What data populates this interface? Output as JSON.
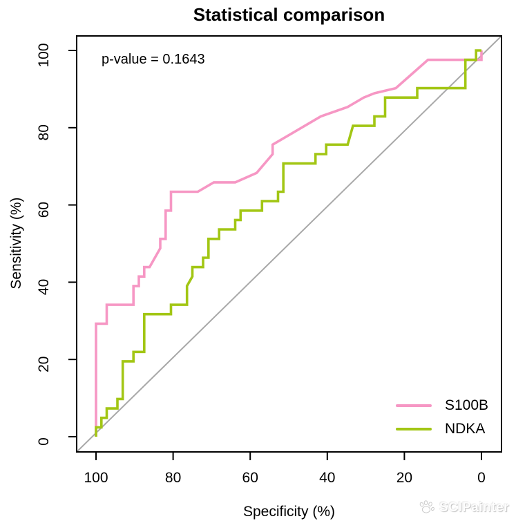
{
  "title": "Statistical comparison",
  "annotation": {
    "text": "p-value = 0.1643"
  },
  "watermark": {
    "label": "SCIPainter",
    "icon": "paw-icon"
  },
  "legend": {
    "position": "bottom-right",
    "items": [
      {
        "label": "S100B",
        "color": "#F697C4"
      },
      {
        "label": "NDKA",
        "color": "#A2C614"
      }
    ]
  },
  "chart_data": {
    "type": "line",
    "subtype": "roc-step-curves",
    "title": "Statistical comparison",
    "xlabel": "Specificity (%)",
    "ylabel": "Sensitivity (%)",
    "x_ticks": [
      100,
      80,
      60,
      40,
      20,
      0
    ],
    "y_ticks": [
      0,
      20,
      40,
      60,
      80,
      100
    ],
    "xlim": [
      104,
      -4
    ],
    "ylim": [
      -4,
      104
    ],
    "x_reversed": true,
    "grid": false,
    "diagonal_reference_line": true,
    "reference_line_color": "#a8a8a8",
    "annotation": "p-value = 0.1643",
    "legend_position": "bottom-right",
    "series": [
      {
        "name": "S100B",
        "color": "#F697C4",
        "points": [
          [
            100,
            0
          ],
          [
            100,
            29.27
          ],
          [
            97.22,
            29.27
          ],
          [
            97.22,
            34.15
          ],
          [
            90.28,
            34.15
          ],
          [
            90.28,
            39.02
          ],
          [
            88.89,
            39.02
          ],
          [
            88.89,
            41.46
          ],
          [
            87.5,
            41.46
          ],
          [
            87.5,
            43.9
          ],
          [
            86.11,
            43.9
          ],
          [
            83.33,
            48.78
          ],
          [
            83.33,
            51.22
          ],
          [
            81.94,
            51.22
          ],
          [
            81.94,
            58.54
          ],
          [
            80.56,
            58.54
          ],
          [
            80.56,
            63.41
          ],
          [
            73.61,
            63.41
          ],
          [
            69.44,
            65.85
          ],
          [
            63.89,
            65.85
          ],
          [
            58.33,
            68.29
          ],
          [
            54.17,
            73.17
          ],
          [
            54.17,
            75.61
          ],
          [
            50,
            78.05
          ],
          [
            41.67,
            82.93
          ],
          [
            34.72,
            85.37
          ],
          [
            30.56,
            87.8
          ],
          [
            27.78,
            88.9
          ],
          [
            22.22,
            90.24
          ],
          [
            13.89,
            97.56
          ],
          [
            0,
            97.56
          ],
          [
            0,
            100
          ]
        ]
      },
      {
        "name": "NDKA",
        "color": "#A2C614",
        "points": [
          [
            100,
            0
          ],
          [
            100,
            2.44
          ],
          [
            98.61,
            2.44
          ],
          [
            98.61,
            4.88
          ],
          [
            97.22,
            4.88
          ],
          [
            97.22,
            7.32
          ],
          [
            94.44,
            7.32
          ],
          [
            94.44,
            9.76
          ],
          [
            93.06,
            9.76
          ],
          [
            93.06,
            19.51
          ],
          [
            90.28,
            19.51
          ],
          [
            90.28,
            21.95
          ],
          [
            87.5,
            21.95
          ],
          [
            87.5,
            31.71
          ],
          [
            80.56,
            31.71
          ],
          [
            80.56,
            34.15
          ],
          [
            76.39,
            34.15
          ],
          [
            76.39,
            39.02
          ],
          [
            75,
            41.46
          ],
          [
            75,
            43.9
          ],
          [
            72.22,
            43.9
          ],
          [
            72.22,
            46.34
          ],
          [
            70.83,
            46.34
          ],
          [
            70.83,
            51.22
          ],
          [
            68.06,
            51.22
          ],
          [
            68.06,
            53.66
          ],
          [
            63.89,
            53.66
          ],
          [
            63.89,
            56.1
          ],
          [
            62.5,
            56.1
          ],
          [
            62.5,
            58.54
          ],
          [
            56.94,
            58.54
          ],
          [
            56.94,
            60.98
          ],
          [
            52.78,
            60.98
          ],
          [
            52.78,
            63.41
          ],
          [
            51.39,
            63.41
          ],
          [
            51.39,
            70.73
          ],
          [
            43.06,
            70.73
          ],
          [
            43.06,
            73.17
          ],
          [
            40.28,
            73.17
          ],
          [
            40.28,
            75.61
          ],
          [
            34.72,
            75.61
          ],
          [
            33.33,
            80.49
          ],
          [
            27.78,
            80.49
          ],
          [
            27.78,
            82.93
          ],
          [
            25,
            82.93
          ],
          [
            25,
            87.8
          ],
          [
            16.67,
            87.8
          ],
          [
            16.67,
            90.24
          ],
          [
            4.17,
            90.24
          ],
          [
            4.17,
            97.56
          ],
          [
            1.39,
            97.56
          ],
          [
            1.39,
            100
          ],
          [
            0,
            100
          ]
        ]
      }
    ]
  }
}
